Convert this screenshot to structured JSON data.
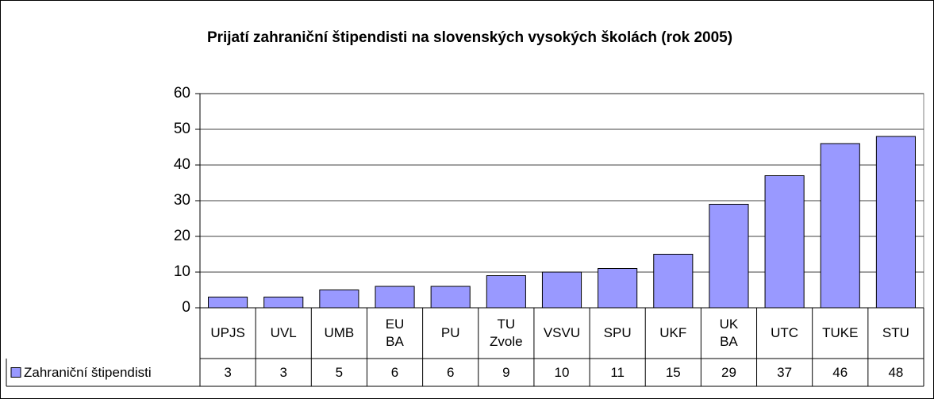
{
  "chart_data": {
    "type": "bar",
    "title": "Prijatí zahraniční štipendisti na slovenských vysokých školách (rok 2005)",
    "categories": [
      "UPJS",
      "UVL",
      "UMB",
      "EU\nBA",
      "PU",
      "TU\nZvole",
      "VSVU",
      "SPU",
      "UKF",
      "UK\nBA",
      "UTC",
      "TUKE",
      "STU"
    ],
    "series": [
      {
        "name": "Zahraniční štipendisti",
        "color": "#9999ff",
        "values": [
          3,
          3,
          5,
          6,
          6,
          9,
          10,
          11,
          15,
          29,
          37,
          46,
          48
        ]
      }
    ],
    "ylim": [
      0,
      60
    ],
    "yticks": [
      0,
      10,
      20,
      30,
      40,
      50,
      60
    ],
    "grid": true
  }
}
